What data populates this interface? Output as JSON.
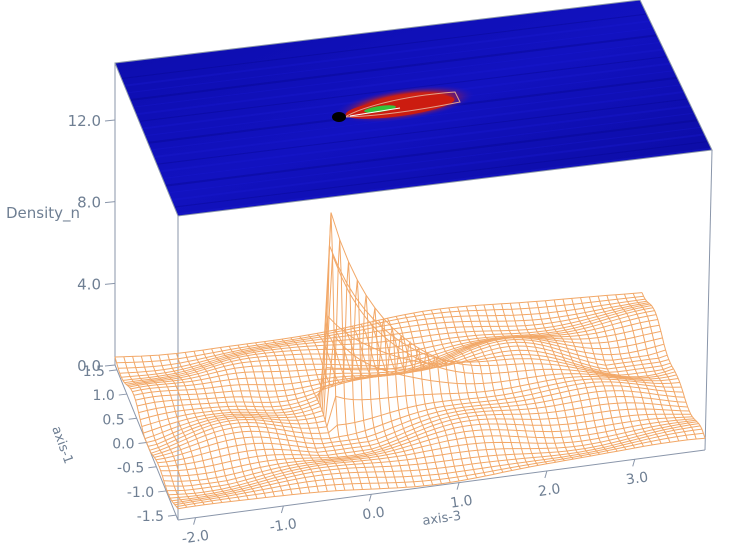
{
  "chart_data": {
    "type": "surface",
    "zlabel": "Density_n",
    "xlabel": "axis-3",
    "ylabel": "axis-1",
    "z_ticks": [
      "0.0",
      "4.0",
      "8.0",
      "12.0"
    ],
    "x_ticks": [
      "-2.0",
      "-1.0",
      "0.0",
      "1.0",
      "2.0",
      "3.0"
    ],
    "y_ticks": [
      "-1.5",
      "-1.0",
      "-0.5",
      "0.0",
      "0.5",
      "1.0",
      "1.5"
    ],
    "zlim": [
      0,
      14
    ],
    "xlim": [
      -2.2,
      3.8
    ],
    "ylim": [
      -1.6,
      1.6
    ],
    "peak": {
      "x": -0.15,
      "y": 0.0,
      "z": 10.5
    },
    "mesh_color": "#f2a868",
    "heatmap_colors": [
      "#08089a",
      "#1414c8",
      "#d81e10",
      "#2fbf2f",
      "#000000"
    ]
  }
}
